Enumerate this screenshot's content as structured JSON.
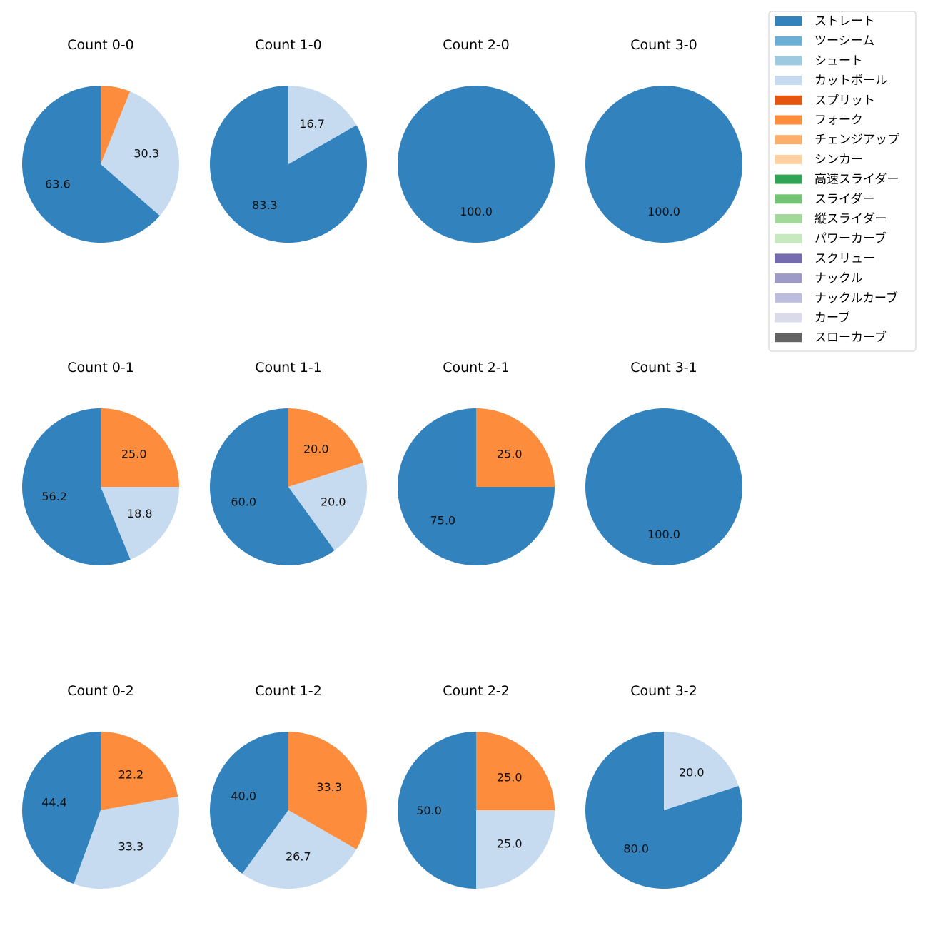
{
  "chart_data": {
    "type": "pie",
    "legend": {
      "position": "top-right",
      "entries": [
        {
          "name": "ストレート",
          "color": "#3182bd"
        },
        {
          "name": "ツーシーム",
          "color": "#6baed6"
        },
        {
          "name": "シュート",
          "color": "#9ecae1"
        },
        {
          "name": "カットボール",
          "color": "#c6dbef"
        },
        {
          "name": "スプリット",
          "color": "#e6550d"
        },
        {
          "name": "フォーク",
          "color": "#fd8d3c"
        },
        {
          "name": "チェンジアップ",
          "color": "#fdae6b"
        },
        {
          "name": "シンカー",
          "color": "#fdd0a2"
        },
        {
          "name": "高速スライダー",
          "color": "#31a354"
        },
        {
          "name": "スライダー",
          "color": "#74c476"
        },
        {
          "name": "縦スライダー",
          "color": "#a1d99b"
        },
        {
          "name": "パワーカーブ",
          "color": "#c7e9c0"
        },
        {
          "name": "スクリュー",
          "color": "#756bb1"
        },
        {
          "name": "ナックル",
          "color": "#9e9ac8"
        },
        {
          "name": "ナックルカーブ",
          "color": "#bcbddc"
        },
        {
          "name": "カーブ",
          "color": "#dadaeb"
        },
        {
          "name": "スローカーブ",
          "color": "#636363"
        }
      ]
    },
    "pies": [
      {
        "title": "Count 0-0",
        "slices": [
          {
            "pitch": "ストレート",
            "value": 63.6,
            "label": "63.6"
          },
          {
            "pitch": "カットボール",
            "value": 30.3,
            "label": "30.3"
          },
          {
            "pitch": "フォーク",
            "value": 6.1,
            "label": ""
          }
        ]
      },
      {
        "title": "Count 1-0",
        "slices": [
          {
            "pitch": "ストレート",
            "value": 83.3,
            "label": "83.3"
          },
          {
            "pitch": "カットボール",
            "value": 16.7,
            "label": "16.7"
          }
        ]
      },
      {
        "title": "Count 2-0",
        "slices": [
          {
            "pitch": "ストレート",
            "value": 100.0,
            "label": "100.0"
          }
        ]
      },
      {
        "title": "Count 3-0",
        "slices": [
          {
            "pitch": "ストレート",
            "value": 100.0,
            "label": "100.0"
          }
        ]
      },
      {
        "title": "Count 0-1",
        "slices": [
          {
            "pitch": "ストレート",
            "value": 56.2,
            "label": "56.2"
          },
          {
            "pitch": "カットボール",
            "value": 18.8,
            "label": "18.8"
          },
          {
            "pitch": "フォーク",
            "value": 25.0,
            "label": "25.0"
          }
        ]
      },
      {
        "title": "Count 1-1",
        "slices": [
          {
            "pitch": "ストレート",
            "value": 60.0,
            "label": "60.0"
          },
          {
            "pitch": "カットボール",
            "value": 20.0,
            "label": "20.0"
          },
          {
            "pitch": "フォーク",
            "value": 20.0,
            "label": "20.0"
          }
        ]
      },
      {
        "title": "Count 2-1",
        "slices": [
          {
            "pitch": "ストレート",
            "value": 75.0,
            "label": "75.0"
          },
          {
            "pitch": "フォーク",
            "value": 25.0,
            "label": "25.0"
          }
        ]
      },
      {
        "title": "Count 3-1",
        "slices": [
          {
            "pitch": "ストレート",
            "value": 100.0,
            "label": "100.0"
          }
        ]
      },
      {
        "title": "Count 0-2",
        "slices": [
          {
            "pitch": "ストレート",
            "value": 44.4,
            "label": "44.4"
          },
          {
            "pitch": "カットボール",
            "value": 33.3,
            "label": "33.3"
          },
          {
            "pitch": "フォーク",
            "value": 22.2,
            "label": "22.2"
          }
        ]
      },
      {
        "title": "Count 1-2",
        "slices": [
          {
            "pitch": "ストレート",
            "value": 40.0,
            "label": "40.0"
          },
          {
            "pitch": "カットボール",
            "value": 26.7,
            "label": "26.7"
          },
          {
            "pitch": "フォーク",
            "value": 33.3,
            "label": "33.3"
          }
        ]
      },
      {
        "title": "Count 2-2",
        "slices": [
          {
            "pitch": "ストレート",
            "value": 50.0,
            "label": "50.0"
          },
          {
            "pitch": "カットボール",
            "value": 25.0,
            "label": "25.0"
          },
          {
            "pitch": "フォーク",
            "value": 25.0,
            "label": "25.0"
          }
        ]
      },
      {
        "title": "Count 3-2",
        "slices": [
          {
            "pitch": "ストレート",
            "value": 80.0,
            "label": "80.0"
          },
          {
            "pitch": "カットボール",
            "value": 20.0,
            "label": "20.0"
          }
        ]
      }
    ]
  }
}
